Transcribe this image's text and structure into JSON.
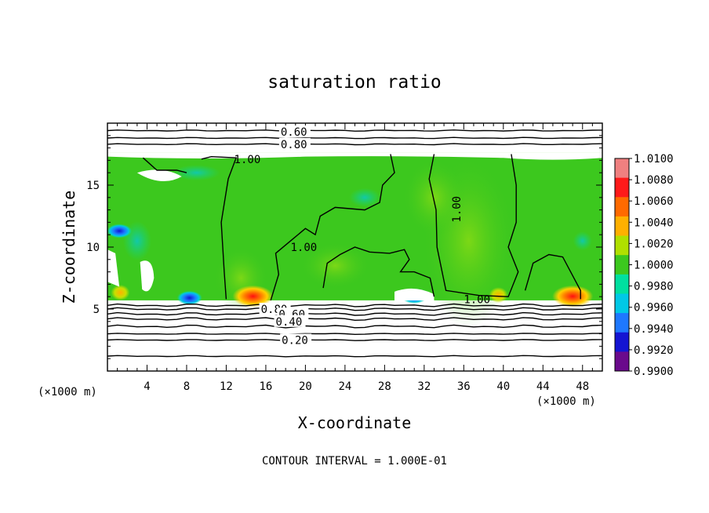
{
  "chart_data": {
    "type": "heatmap",
    "title": "saturation ratio",
    "xlabel": "X-coordinate",
    "ylabel": "Z-coordinate",
    "x_unit": "(×1000 m)",
    "xlim": [
      0,
      50
    ],
    "ylim": [
      0,
      20
    ],
    "x_ticks": [
      4,
      8,
      12,
      16,
      20,
      24,
      28,
      32,
      36,
      40,
      44,
      48
    ],
    "y_ticks": [
      5,
      10,
      15
    ],
    "footer": "CONTOUR INTERVAL = 1.000E-01",
    "colorbar": {
      "labels": [
        "1.0100",
        "1.0080",
        "1.0060",
        "1.0040",
        "1.0020",
        "1.0000",
        "0.9980",
        "0.9960",
        "0.9940",
        "0.9920",
        "0.9900"
      ],
      "colors": [
        "#f08080",
        "#ff1a1a",
        "#ff6a00",
        "#ffb000",
        "#b0e000",
        "#3cc81e",
        "#00e0a0",
        "#00c8e6",
        "#1e78ff",
        "#1414d2",
        "#6a0a8c"
      ]
    },
    "contour_labels": [
      {
        "text": "0.60",
        "x": 17.5,
        "z": 19.3
      },
      {
        "text": "0.80",
        "x": 17.5,
        "z": 18.3
      },
      {
        "text": "1.00",
        "x": 12.8,
        "z": 17.1
      },
      {
        "text": "1.00",
        "x": 18.5,
        "z": 10.0
      },
      {
        "text": "1.00",
        "x": 34.0,
        "z": 13.0
      },
      {
        "text": "1.00",
        "x": 36.0,
        "z": 5.8
      },
      {
        "text": "0.80",
        "x": 15.5,
        "z": 5.0
      },
      {
        "text": "0.60",
        "x": 17.3,
        "z": 4.6
      },
      {
        "text": "0.40",
        "x": 17.0,
        "z": 4.0
      },
      {
        "text": "0.20",
        "x": 17.6,
        "z": 2.5
      }
    ],
    "fields": {
      "base": "1.0000",
      "saturated_region_z": [
        5.7,
        17.6
      ],
      "hot_spots": [
        {
          "x": 14.7,
          "z": 5.9,
          "value": "1.0060"
        },
        {
          "x": 47.0,
          "z": 5.9,
          "value": "1.0060"
        },
        {
          "x": 1.3,
          "z": 6.2,
          "value": "1.0040"
        },
        {
          "x": 39.5,
          "z": 6.0,
          "value": "1.0040"
        }
      ],
      "cold_spots": [
        {
          "x": 8.3,
          "z": 5.9,
          "value": "0.9920"
        },
        {
          "x": 1.2,
          "z": 11.3,
          "value": "0.9920"
        },
        {
          "x": 31.0,
          "z": 6.0,
          "value": "0.9950"
        }
      ]
    }
  }
}
